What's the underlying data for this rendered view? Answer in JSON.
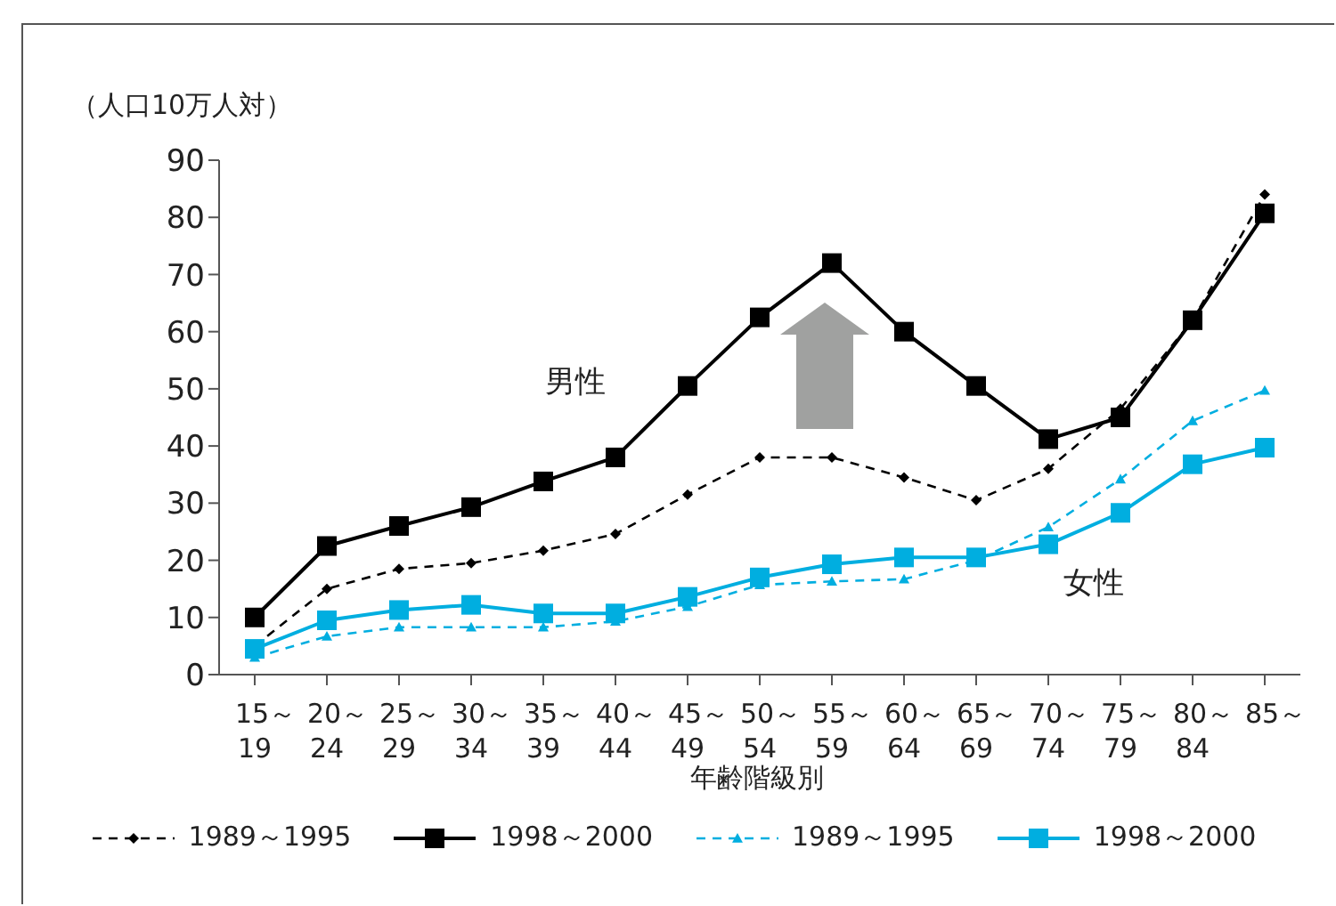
{
  "chart_data": {
    "type": "line",
    "ylabel": "（人口10万人対）",
    "xlabel": "年齢階級別",
    "categories": [
      "15～19",
      "20～24",
      "25～29",
      "30～34",
      "35～39",
      "40～44",
      "45～49",
      "50～54",
      "55～59",
      "60～64",
      "65～69",
      "70～74",
      "75～79",
      "80～84",
      "85～"
    ],
    "series": [
      {
        "name": "1989～1995",
        "color": "#000000",
        "marker": "diamond",
        "line_style": "dashed",
        "values": [
          5,
          15,
          18.5,
          19.5,
          21.7,
          24.6,
          31.5,
          38,
          38,
          34.5,
          30.5,
          36,
          46.5,
          62,
          84
        ]
      },
      {
        "name": "1998～2000",
        "color": "#000000",
        "marker": "square",
        "line_style": "solid",
        "values": [
          10,
          22.5,
          26,
          29.3,
          33.8,
          38,
          50.5,
          62.5,
          72,
          60,
          50.5,
          41.2,
          45,
          62,
          80.7
        ]
      },
      {
        "name": "1989～1995",
        "color": "#00aee0",
        "marker": "triangle",
        "line_style": "dashed",
        "values": [
          3,
          6.7,
          8.3,
          8.3,
          8.3,
          9.3,
          11.9,
          15.7,
          16.3,
          16.7,
          20,
          25.8,
          34.2,
          44.4,
          49.7
        ]
      },
      {
        "name": "1998～2000",
        "color": "#00aee0",
        "marker": "square",
        "line_style": "solid",
        "values": [
          4.5,
          9.5,
          11.3,
          12.2,
          10.7,
          10.7,
          13.6,
          17,
          19.3,
          20.5,
          20.5,
          22.8,
          28.3,
          36.8,
          39.7
        ]
      }
    ],
    "annotations": [
      "男性",
      "女性"
    ],
    "ylim": [
      0,
      90
    ],
    "yticks": [
      0,
      10,
      20,
      30,
      40,
      50,
      60,
      70,
      80,
      90
    ],
    "grid": false,
    "legend": "bottom"
  }
}
